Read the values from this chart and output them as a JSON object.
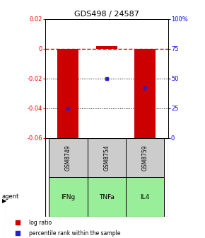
{
  "title": "GDS498 / 24587",
  "samples": [
    "GSM8749",
    "GSM8754",
    "GSM8759"
  ],
  "agents": [
    "IFNg",
    "TNFa",
    "IL4"
  ],
  "log_ratios": [
    -0.065,
    0.002,
    -0.065
  ],
  "percentile_ranks": [
    25.0,
    50.0,
    42.0
  ],
  "bar_color": "#cc0000",
  "dot_color": "#2222cc",
  "ylim_left": [
    -0.06,
    0.02
  ],
  "ylim_right": [
    0,
    100
  ],
  "yticks_left": [
    0.02,
    0.0,
    -0.02,
    -0.04,
    -0.06
  ],
  "yticks_right": [
    100,
    75,
    50,
    25,
    0
  ],
  "ytick_labels_left": [
    "0.02",
    "0",
    "-0.02",
    "-0.04",
    "-0.06"
  ],
  "ytick_labels_right": [
    "100%",
    "75",
    "50",
    "25",
    "0"
  ],
  "sample_bg_color": "#cccccc",
  "agent_bg_color": "#99ee99",
  "dashed_color": "#cc0000",
  "bar_width": 0.55,
  "bg_color": "#ffffff"
}
